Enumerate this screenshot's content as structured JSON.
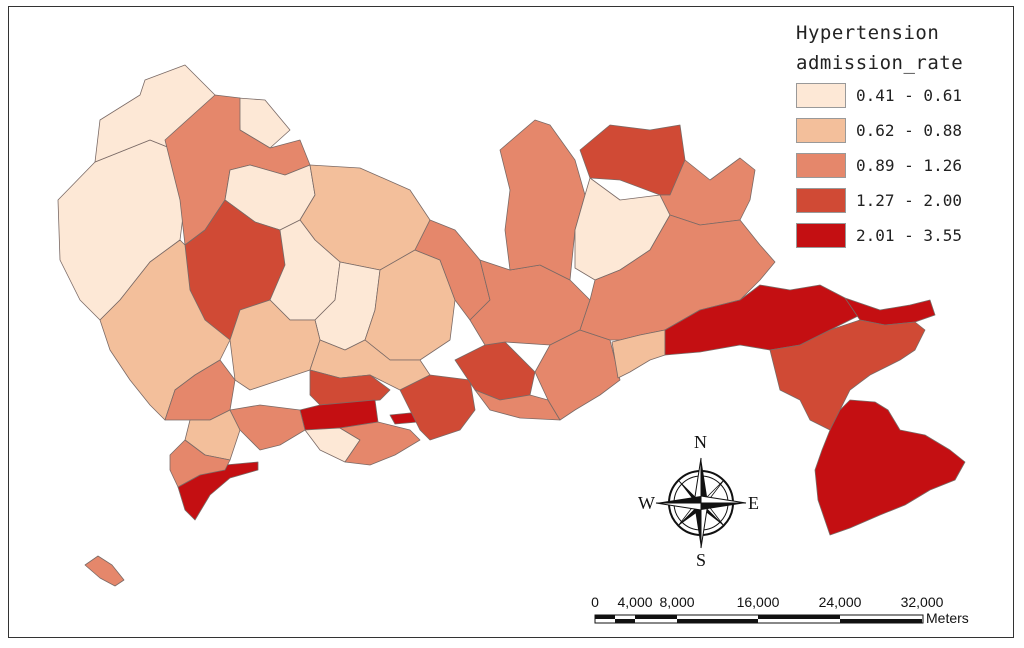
{
  "legend": {
    "title_line1": "Hypertension",
    "title_line2": "admission_rate",
    "classes": [
      {
        "label": "0.41 - 0.61",
        "color": "#fde8d6"
      },
      {
        "label": "0.62 - 0.88",
        "color": "#f3bf9b"
      },
      {
        "label": "0.89 - 1.26",
        "color": "#e5876b"
      },
      {
        "label": "1.27 - 2.00",
        "color": "#d04a35"
      },
      {
        "label": "2.01 - 3.55",
        "color": "#c40f12"
      }
    ]
  },
  "compass": {
    "north": "N",
    "south": "S",
    "east": "E",
    "west": "W",
    "icon": "north-arrow-compass-rose"
  },
  "scale_bar": {
    "ticks": [
      "0",
      "4,000",
      "8,000",
      "16,000",
      "24,000",
      "32,000"
    ],
    "unit": "Meters"
  },
  "boundary_color": "#7a6a66",
  "frame_color": "#333333"
}
